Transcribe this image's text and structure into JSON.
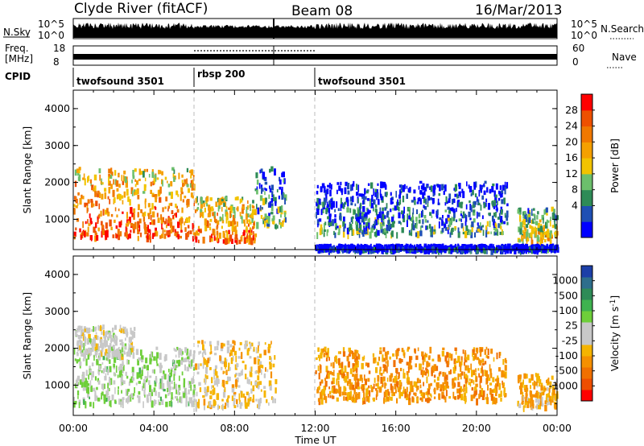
{
  "header": {
    "station": "Clyde River (fitACF)",
    "beam": "Beam 08",
    "date": "16/Mar/2013"
  },
  "top_panels": {
    "nsky_label": "N.Sky",
    "nsky_ticks": [
      "10^5",
      "10^0"
    ],
    "nsearch_label": "N.Search",
    "nsearch_ticks": [
      "10^5",
      "10^0"
    ],
    "freq_label_line1": "Freq.",
    "freq_label_line2": "[MHz]",
    "freq_ticks": [
      "18",
      "8"
    ],
    "nave_label": "Nave",
    "nave_ticks": [
      "60",
      "0"
    ],
    "cpid_label": "CPID",
    "cpid_segments": [
      {
        "name": "twofsound 3501",
        "start": 0,
        "end": 6
      },
      {
        "name": "rbsp 200",
        "start": 6,
        "end": 12
      },
      {
        "name": "twofsound 3501",
        "start": 12,
        "end": 24
      }
    ]
  },
  "x_axis": {
    "label": "Time UT",
    "tick_labels": [
      "00:00",
      "04:00",
      "08:00",
      "12:00",
      "16:00",
      "20:00",
      "00:00"
    ]
  },
  "colorbars": {
    "power": {
      "label": "Power [dB]",
      "ticks": [
        "28",
        "24",
        "20",
        "16",
        "12",
        "8",
        "4"
      ],
      "colors": [
        "#0000ff",
        "#1f4fb4",
        "#2e8b57",
        "#6cbf6c",
        "#f2c300",
        "#f5a000",
        "#f07800",
        "#ee5000",
        "#ff0000"
      ]
    },
    "velocity": {
      "label_main": "Velocity [m s",
      "label_exp": "-1",
      "label_end": "]",
      "ticks": [
        "1000",
        "500",
        "100",
        "25",
        "-25",
        "-100",
        "-500",
        "-1000"
      ],
      "colors": [
        "#1c3fa8",
        "#2e6e8c",
        "#2e8b57",
        "#3fb24f",
        "#6ecf3a",
        "#c8c8c8",
        "#c8c8c8",
        "#f5b400",
        "#f59000",
        "#f07000",
        "#ee4e00",
        "#ff0000"
      ]
    }
  },
  "chart_data": [
    {
      "type": "heatmap",
      "panel": "power",
      "xlabel": "Time UT",
      "ylabel": "Slant Range [km]",
      "ytick_labels": [
        "1000",
        "2000",
        "3000",
        "4000"
      ],
      "xlim": [
        0,
        24
      ],
      "ylim": [
        180,
        4500
      ],
      "color_label": "Power [dB]",
      "color_range": [
        0,
        31
      ],
      "cpid_boundaries_hours": [
        6,
        12
      ],
      "echo_regions": [
        {
          "t_start": 0.0,
          "t_end": 6.0,
          "range_min": 500,
          "range_max": 2400,
          "power": 26
        },
        {
          "t_start": 6.0,
          "t_end": 9.0,
          "range_min": 400,
          "range_max": 1600,
          "power": 24
        },
        {
          "t_start": 9.0,
          "t_end": 10.5,
          "range_min": 800,
          "range_max": 2400,
          "power": 12
        },
        {
          "t_start": 12.0,
          "t_end": 21.5,
          "range_min": 600,
          "range_max": 2000,
          "power": 10
        },
        {
          "t_start": 22.0,
          "t_end": 24.0,
          "range_min": 400,
          "range_max": 1300,
          "power": 18
        },
        {
          "t_start": 12.0,
          "t_end": 24.0,
          "range_min": 180,
          "range_max": 300,
          "power": 4
        }
      ]
    },
    {
      "type": "heatmap",
      "panel": "velocity",
      "xlabel": "Time UT",
      "ylabel": "Slant Range [km]",
      "ytick_labels": [
        "1000",
        "2000",
        "3000",
        "4000"
      ],
      "xlim": [
        0,
        24
      ],
      "ylim": [
        180,
        4500
      ],
      "color_label": "Velocity [m s-1]",
      "color_range": [
        -1000,
        1000
      ],
      "cpid_boundaries_hours": [
        6,
        12
      ],
      "echo_regions": [
        {
          "t_start": 0.0,
          "t_end": 6.0,
          "range_min": 500,
          "range_max": 2000,
          "velocity": 150
        },
        {
          "t_start": 0.0,
          "t_end": 3.0,
          "range_min": 1800,
          "range_max": 2600,
          "velocity": 0
        },
        {
          "t_start": 6.0,
          "t_end": 10.0,
          "range_min": 400,
          "range_max": 2200,
          "velocity": -200
        },
        {
          "t_start": 12.0,
          "t_end": 21.5,
          "range_min": 600,
          "range_max": 2000,
          "velocity": -400
        },
        {
          "t_start": 22.0,
          "t_end": 24.0,
          "range_min": 400,
          "range_max": 1300,
          "velocity": -300
        }
      ]
    }
  ]
}
